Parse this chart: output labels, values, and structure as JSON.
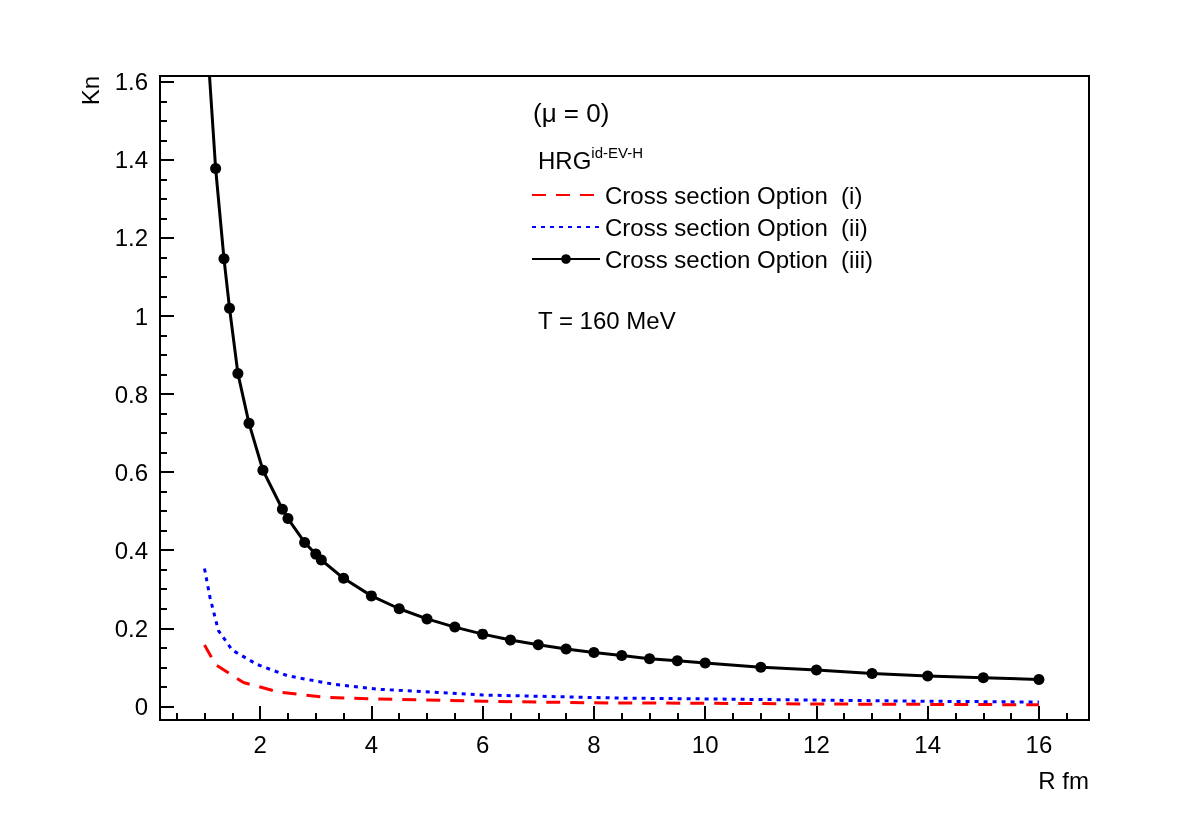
{
  "chart_data": {
    "type": "line",
    "xlabel": "R fm",
    "ylabel": "Kn",
    "xlim": [
      0.2,
      16.9
    ],
    "ylim": [
      -0.035,
      1.615
    ],
    "xticks": [
      {
        "value": 0.5,
        "label": null
      },
      {
        "value": 1,
        "label": null
      },
      {
        "value": 1.5,
        "label": null
      },
      2,
      {
        "value": 2.5,
        "label": null
      },
      {
        "value": 3,
        "label": null
      },
      {
        "value": 3.5,
        "label": null
      },
      4,
      {
        "value": 4.5,
        "label": null
      },
      {
        "value": 5,
        "label": null
      },
      {
        "value": 5.5,
        "label": null
      },
      6,
      {
        "value": 6.5,
        "label": null
      },
      {
        "value": 7,
        "label": null
      },
      {
        "value": 7.5,
        "label": null
      },
      8,
      {
        "value": 8.5,
        "label": null
      },
      {
        "value": 9,
        "label": null
      },
      {
        "value": 9.5,
        "label": null
      },
      10,
      {
        "value": 10.5,
        "label": null
      },
      {
        "value": 11,
        "label": null
      },
      {
        "value": 11.5,
        "label": null
      },
      12,
      {
        "value": 12.5,
        "label": null
      },
      {
        "value": 13,
        "label": null
      },
      {
        "value": 13.5,
        "label": null
      },
      14,
      {
        "value": 14.5,
        "label": null
      },
      {
        "value": 15,
        "label": null
      },
      {
        "value": 15.5,
        "label": null
      },
      16,
      {
        "value": 16.5,
        "label": null
      }
    ],
    "yticks": [
      0,
      {
        "value": 0.05,
        "label": null
      },
      {
        "value": 0.1,
        "label": null
      },
      {
        "value": 0.15,
        "label": null
      },
      0.2,
      {
        "value": 0.25,
        "label": null
      },
      {
        "value": 0.3,
        "label": null
      },
      {
        "value": 0.35,
        "label": null
      },
      0.4,
      {
        "value": 0.45,
        "label": null
      },
      {
        "value": 0.5,
        "label": null
      },
      {
        "value": 0.55,
        "label": null
      },
      0.6,
      {
        "value": 0.65,
        "label": null
      },
      {
        "value": 0.7,
        "label": null
      },
      {
        "value": 0.75,
        "label": null
      },
      0.8,
      {
        "value": 0.85,
        "label": null
      },
      {
        "value": 0.9,
        "label": null
      },
      {
        "value": 0.95,
        "label": null
      },
      1,
      {
        "value": 1.05,
        "label": null
      },
      {
        "value": 1.1,
        "label": null
      },
      {
        "value": 1.15,
        "label": null
      },
      1.2,
      {
        "value": 1.25,
        "label": null
      },
      {
        "value": 1.3,
        "label": null
      },
      {
        "value": 1.35,
        "label": null
      },
      1.4,
      {
        "value": 1.45,
        "label": null
      },
      {
        "value": 1.5,
        "label": null
      },
      {
        "value": 1.55,
        "label": null
      },
      1.6
    ],
    "grid": false,
    "legend": "top",
    "annotations": [
      "(μ = 0)",
      "HRG$^{id-EV-H}$",
      "T = 160 MeV"
    ],
    "series": [
      {
        "name": "Cross section Option  (i)",
        "color": "#ff0000",
        "line_style": "dashed",
        "marker": "none",
        "x": [
          1,
          1.2,
          1.7,
          2.35,
          3.2,
          4.1,
          6,
          8,
          10,
          12,
          14,
          16
        ],
        "values": [
          0.157,
          0.107,
          0.061,
          0.036,
          0.023,
          0.019,
          0.013,
          0.009,
          0.008,
          0.006,
          0.005,
          0.004
        ]
      },
      {
        "name": "Cross section Option  (ii)",
        "color": "#0000ff",
        "line_style": "dotted",
        "marker": "none",
        "x": [
          1,
          1.1,
          1.25,
          1.5,
          1.95,
          2.5,
          3.3,
          4.1,
          6,
          8.5,
          10,
          12,
          14,
          16
        ],
        "values": [
          0.353,
          0.278,
          0.194,
          0.144,
          0.107,
          0.078,
          0.057,
          0.044,
          0.029,
          0.021,
          0.019,
          0.016,
          0.013,
          0.011
        ]
      },
      {
        "name": "Cross section Option  (iii)",
        "color": "#000000",
        "line_style": "solid",
        "marker": "circle",
        "x": [
          1.09,
          1.2,
          1.35,
          1.45,
          1.6,
          1.8,
          2.05,
          2.4,
          2.5,
          2.8,
          3,
          3.1,
          3.5,
          4,
          4.5,
          5,
          5.5,
          6,
          6.5,
          7,
          7.5,
          8,
          8.5,
          9,
          9.5,
          10,
          11,
          12,
          13,
          14,
          15,
          16
        ],
        "values": [
          1.615,
          1.378,
          1.147,
          1.02,
          0.853,
          0.725,
          0.605,
          0.505,
          0.481,
          0.42,
          0.39,
          0.375,
          0.328,
          0.283,
          0.25,
          0.224,
          0.203,
          0.185,
          0.17,
          0.158,
          0.147,
          0.138,
          0.13,
          0.122,
          0.117,
          0.111,
          0.1,
          0.093,
          0.084,
          0.078,
          0.073,
          0.069
        ]
      }
    ]
  }
}
